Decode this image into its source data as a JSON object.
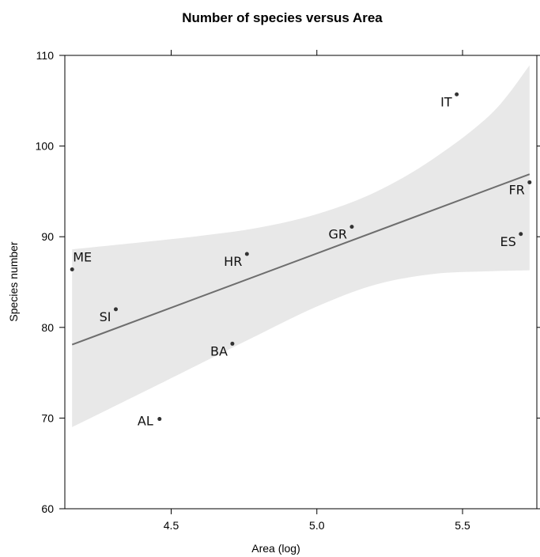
{
  "chart_data": {
    "type": "scatter",
    "title": "Number of species versus Area",
    "xlabel": "Area (log)",
    "ylabel": "Species number",
    "xlim": [
      4.135,
      5.755
    ],
    "ylim": [
      60,
      110
    ],
    "x_ticks": [
      4.5,
      5.0,
      5.5
    ],
    "x_tick_labels": [
      "4.5",
      "5.0",
      "5.5"
    ],
    "y_ticks": [
      60,
      70,
      80,
      90,
      100,
      110
    ],
    "y_tick_labels": [
      "60",
      "70",
      "80",
      "90",
      "100",
      "110"
    ],
    "grid": false,
    "points": [
      {
        "label": "ME",
        "x": 4.16,
        "y": 86.4,
        "label_pos": "above-right"
      },
      {
        "label": "SI",
        "x": 4.31,
        "y": 82.0,
        "label_pos": "below-left"
      },
      {
        "label": "AL",
        "x": 4.46,
        "y": 69.9,
        "label_pos": "left"
      },
      {
        "label": "BA",
        "x": 4.71,
        "y": 78.2,
        "label_pos": "below-left"
      },
      {
        "label": "HR",
        "x": 4.76,
        "y": 88.1,
        "label_pos": "below-left"
      },
      {
        "label": "GR",
        "x": 5.12,
        "y": 91.1,
        "label_pos": "below-left"
      },
      {
        "label": "IT",
        "x": 5.48,
        "y": 105.7,
        "label_pos": "below-left"
      },
      {
        "label": "ES",
        "x": 5.7,
        "y": 90.3,
        "label_pos": "below-left"
      },
      {
        "label": "FR",
        "x": 5.73,
        "y": 96.0,
        "label_pos": "below-left"
      }
    ],
    "fit_line": {
      "x": [
        4.16,
        5.73
      ],
      "y": [
        78.1,
        96.9
      ]
    },
    "confidence_band": {
      "x": [
        4.16,
        4.4,
        4.6,
        4.8,
        5.0,
        5.2,
        5.4,
        5.6,
        5.73
      ],
      "upper": [
        88.6,
        89.4,
        90.1,
        91.0,
        92.5,
        94.9,
        98.6,
        103.6,
        108.9
      ],
      "lower": [
        69.0,
        72.8,
        76.0,
        79.2,
        82.3,
        84.7,
        85.9,
        86.2,
        86.3
      ]
    },
    "colors": {
      "line": "#6e6e6e",
      "band": "#e8e8e8",
      "point": "#333333",
      "axis": "#000000"
    }
  }
}
